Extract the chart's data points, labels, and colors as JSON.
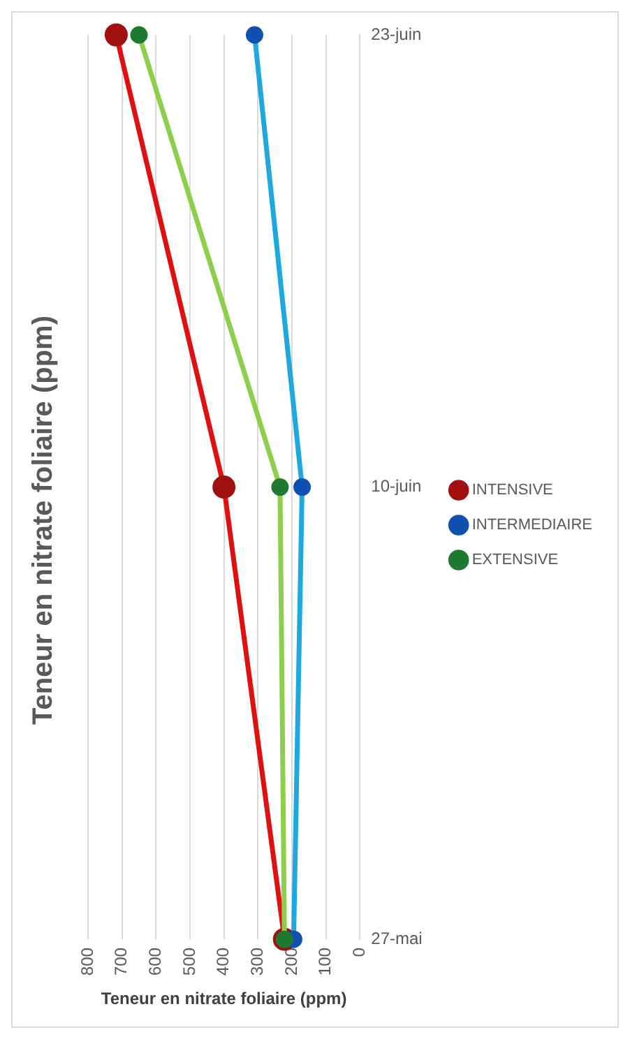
{
  "chart_data": {
    "type": "line",
    "orientation": "horizontal",
    "title": "Teneur en nitrate foliaire (ppm)",
    "xlabel": "Teneur en nitrate foliaire (ppm)",
    "categories": [
      "23-juin",
      "10-juin",
      "27-mai"
    ],
    "series": [
      {
        "name": "INTENSIVE",
        "color": "#e01010",
        "values": [
          717,
          400,
          222
        ]
      },
      {
        "name": "INTERMEDIAIRE",
        "color": "#1ea8e0",
        "values": [
          310,
          170,
          195
        ]
      },
      {
        "name": "EXTENSIVE",
        "color": "#8ccf4a",
        "values": [
          650,
          235,
          222
        ]
      }
    ],
    "xlim": [
      800,
      0
    ],
    "xticks": [
      0,
      100,
      200,
      300,
      400,
      500,
      600,
      700,
      800
    ],
    "grid": "x",
    "legend": "right",
    "marker": "circle",
    "line_style": "solid"
  }
}
